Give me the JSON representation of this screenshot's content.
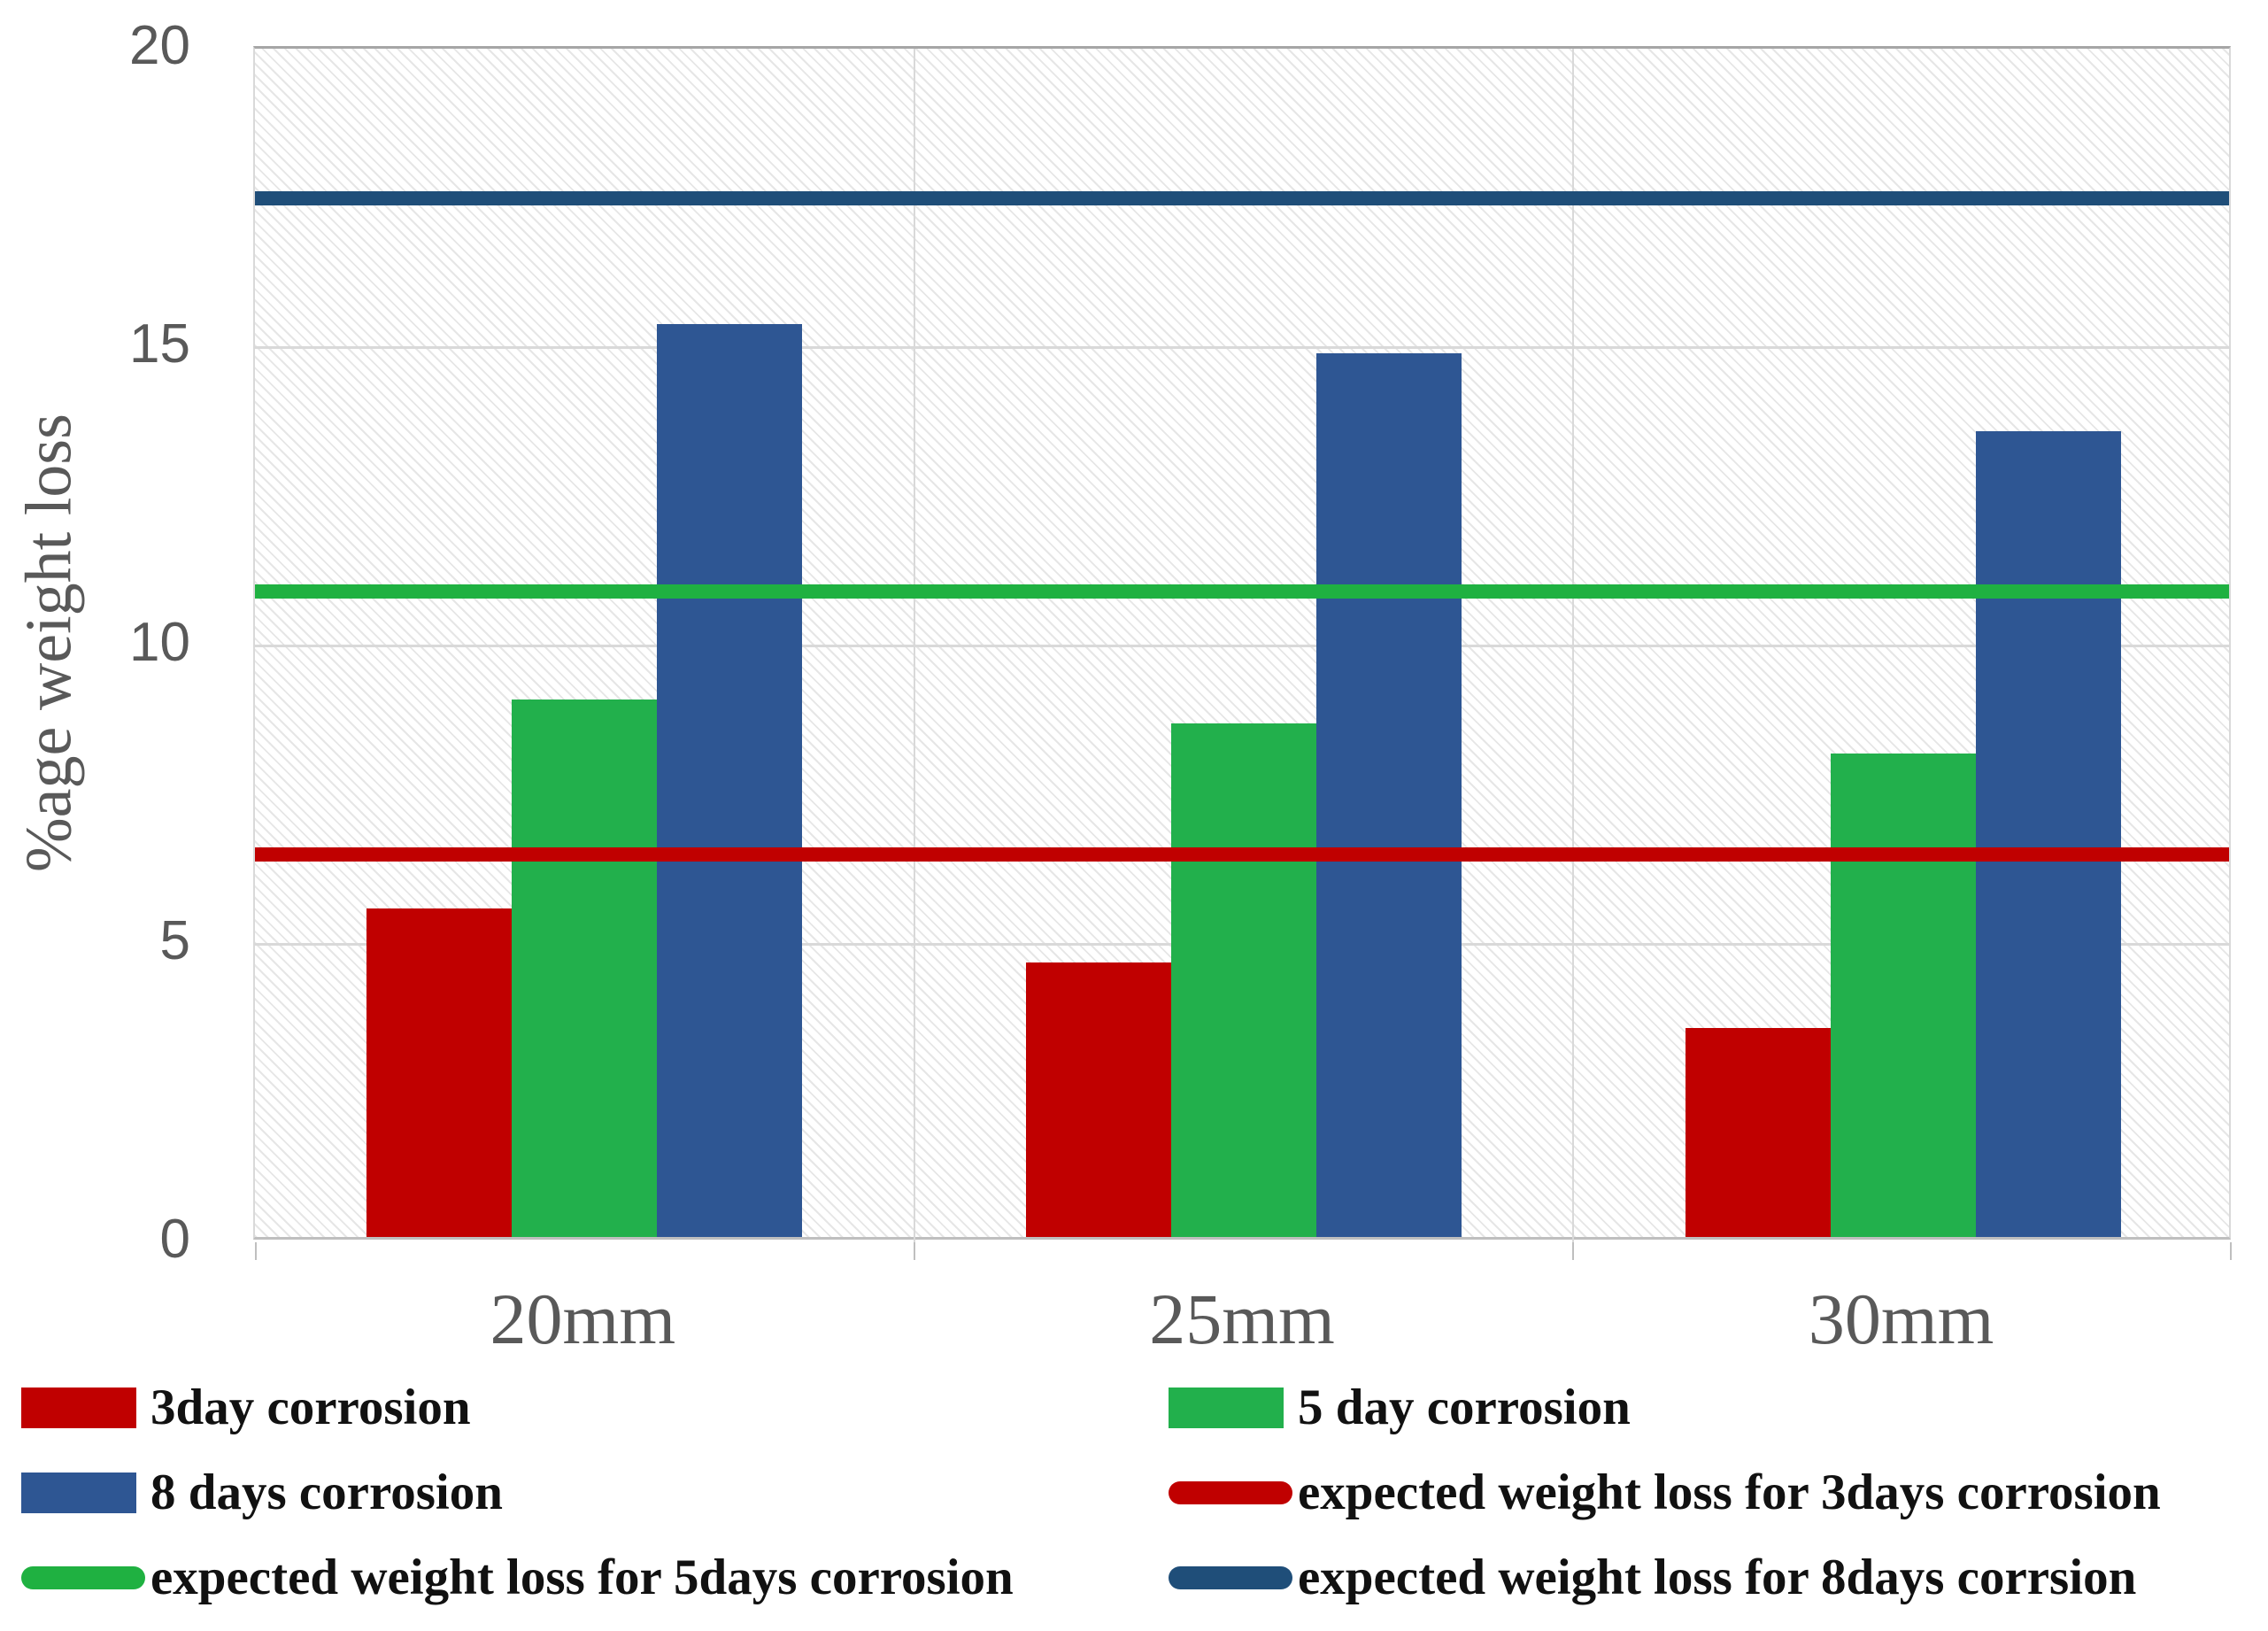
{
  "chart_data": {
    "type": "bar",
    "title": "",
    "xlabel": "",
    "ylabel": "%age weight loss",
    "ylim": [
      0,
      20
    ],
    "yticks": [
      0,
      5,
      10,
      15,
      20
    ],
    "grid": true,
    "plot_background": "diagonal-hatch",
    "legend_position": "bottom-two-columns",
    "categories": [
      "20mm",
      "25mm",
      "30mm"
    ],
    "series": [
      {
        "name": "3day corrosion",
        "color": "#c00000",
        "values": [
          5.5,
          4.6,
          3.5
        ]
      },
      {
        "name": "5 day corrosion",
        "color": "#22b04c",
        "values": [
          9.0,
          8.6,
          8.1
        ]
      },
      {
        "name": "8 days corrosion",
        "color": "#2e5693",
        "values": [
          15.3,
          14.8,
          13.5
        ]
      }
    ],
    "reference_lines": [
      {
        "name": "expected weight loss for 3days corrosion",
        "color": "#c00000",
        "value": 6.5
      },
      {
        "name": "expected weight loss for 5days corrosion",
        "color": "#1fb141",
        "value": 10.9
      },
      {
        "name": "expected weight loss for 8days corrsion",
        "color": "#1f4e79",
        "value": 17.5
      }
    ]
  },
  "legend": {
    "columns": [
      [
        {
          "marker": "rect",
          "color": "#c00000",
          "label": "3day corrosion"
        },
        {
          "marker": "rect",
          "color": "#2e5693",
          "label": "8 days corrosion"
        },
        {
          "marker": "line",
          "color": "#1fb141",
          "label": "expected weight loss for 5days corrosion"
        }
      ],
      [
        {
          "marker": "rect",
          "color": "#22b04c",
          "label": "5 day corrosion"
        },
        {
          "marker": "line",
          "color": "#c00000",
          "label": "expected weight loss for 3days corrosion"
        },
        {
          "marker": "line",
          "color": "#1f4e79",
          "label": "expected weight loss for 8days corrsion"
        }
      ]
    ]
  }
}
